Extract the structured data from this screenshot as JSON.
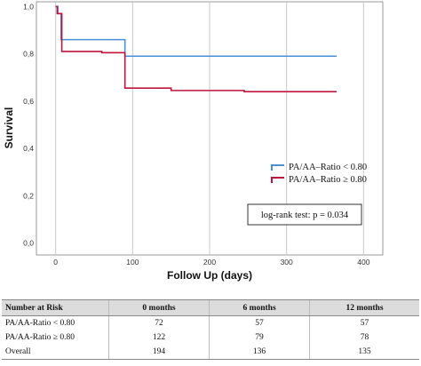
{
  "chart_data": {
    "type": "line",
    "subtype": "kaplan-meier step",
    "xlabel": "Follow Up (days)",
    "ylabel": "Survival",
    "xlim": [
      -25,
      425
    ],
    "ylim": [
      -0.05,
      1.02
    ],
    "xticks": [
      0,
      100,
      200,
      300,
      400
    ],
    "yticks": [
      0,
      0.2,
      0.4,
      0.6,
      0.8,
      1.0
    ],
    "ytick_labels": [
      "0,0",
      "0,2",
      "0,4",
      "0,6",
      "0,8",
      "1,0"
    ],
    "grid": "vertical lines at x ticks",
    "legend_position": "right, mid-height",
    "series": [
      {
        "name": "PA/AA–Ratio < 0.80",
        "color": "#4a90d9",
        "steps": [
          [
            0,
            1.0
          ],
          [
            3,
            0.97
          ],
          [
            7,
            0.86
          ],
          [
            90,
            0.79
          ],
          [
            365,
            0.79
          ]
        ]
      },
      {
        "name": "PA/AA–Ratio ≥ 0.80",
        "color": "#c0143c",
        "steps": [
          [
            0,
            1.0
          ],
          [
            2,
            0.97
          ],
          [
            8,
            0.81
          ],
          [
            60,
            0.805
          ],
          [
            90,
            0.655
          ],
          [
            150,
            0.645
          ],
          [
            245,
            0.64
          ],
          [
            365,
            0.64
          ]
        ]
      }
    ],
    "annotation": "log-rank test: p = 0.034"
  },
  "risk_table": {
    "headers": [
      "Number at Risk",
      "0 months",
      "6 months",
      "12 months"
    ],
    "rows": [
      [
        "PA/AA-Ratio  < 0.80",
        "72",
        "57",
        "57"
      ],
      [
        "PA/AA-Ratio ≥ 0.80",
        "122",
        "79",
        "78"
      ],
      [
        "Overall",
        "194",
        "136",
        "135"
      ]
    ]
  }
}
